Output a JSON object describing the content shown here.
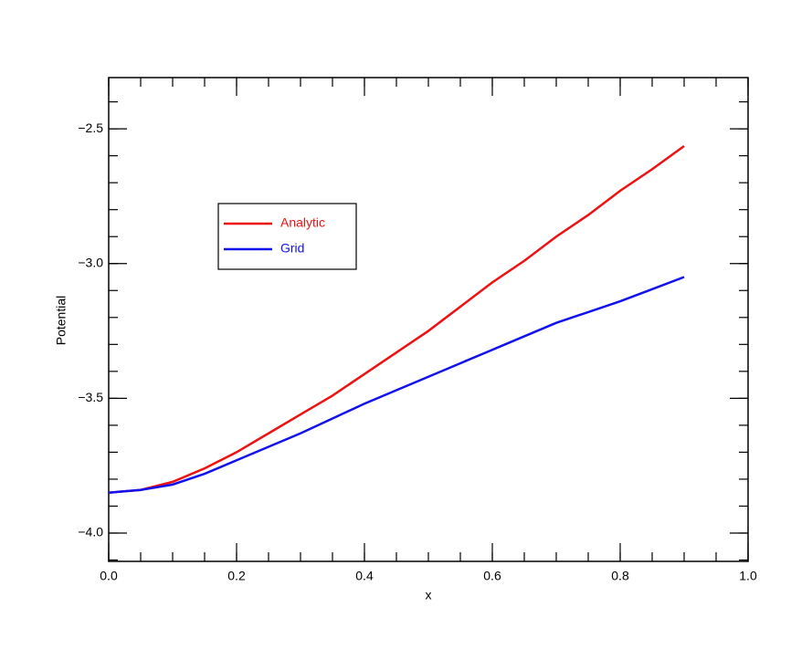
{
  "chart_data": {
    "type": "line",
    "x_label": "x",
    "y_label": "Potential",
    "x": [
      0.0,
      0.05,
      0.1,
      0.15,
      0.2,
      0.25,
      0.3,
      0.35,
      0.4,
      0.45,
      0.5,
      0.55,
      0.6,
      0.65,
      0.7,
      0.75,
      0.8,
      0.85,
      0.9
    ],
    "series": [
      {
        "name": "Analytic",
        "color": "#ee1111",
        "values": [
          -3.85,
          -3.84,
          -3.81,
          -3.76,
          -3.7,
          -3.63,
          -3.56,
          -3.49,
          -3.41,
          -3.33,
          -3.25,
          -3.16,
          -3.07,
          -2.99,
          -2.9,
          -2.82,
          -2.73,
          -2.65,
          -2.564
        ]
      },
      {
        "name": "Grid",
        "color": "#1111ee",
        "values": [
          -3.85,
          -3.84,
          -3.82,
          -3.78,
          -3.73,
          -3.68,
          -3.63,
          -3.575,
          -3.52,
          -3.47,
          -3.42,
          -3.37,
          -3.32,
          -3.27,
          -3.22,
          -3.18,
          -3.14,
          -3.095,
          -3.05
        ]
      }
    ],
    "xlim": [
      0,
      1
    ],
    "xticks": [
      {
        "value": 0,
        "label": "0.0"
      },
      0.2,
      0.4,
      0.6,
      0.8,
      {
        "value": 1,
        "label": "1.0"
      }
    ],
    "ylim": [
      -4.105,
      -2.31
    ],
    "yticks": [
      {
        "value": -4,
        "label": "−4.0"
      },
      {
        "value": -3.5,
        "label": "−3.5"
      },
      {
        "value": -3,
        "label": "−3.0"
      },
      {
        "value": -2.5,
        "label": "−2.5"
      }
    ],
    "legend": "upper-left",
    "grid": false
  }
}
